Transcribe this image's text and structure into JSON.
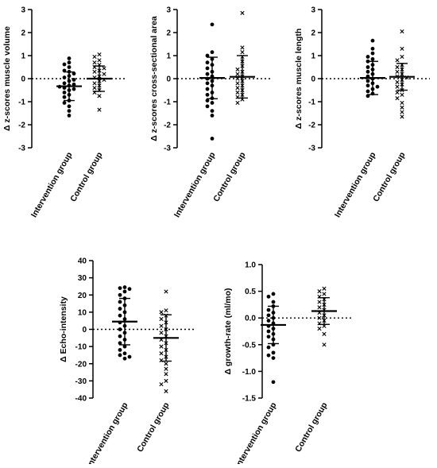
{
  "chart_data": [
    {
      "type": "scatter",
      "ylabel": "Δ z-scores muscle volume",
      "ylim": [
        -3,
        3
      ],
      "yticks": [
        "-3",
        "-2",
        "-1",
        "0",
        "1",
        "2",
        "3"
      ],
      "categories": [
        "Intervention group",
        "Control group"
      ],
      "reference_line_y": 0,
      "series": [
        {
          "marker": "dot",
          "mean": -0.33,
          "sd": 0.62,
          "values": [
            0.88,
            0.7,
            0.62,
            0.5,
            0.35,
            0.3,
            0.22,
            0.12,
            0.05,
            -0.05,
            -0.1,
            -0.2,
            -0.25,
            -0.3,
            -0.35,
            -0.4,
            -0.45,
            -0.5,
            -0.6,
            -0.7,
            -0.8,
            -0.95,
            -1.05,
            -1.2,
            -1.4,
            -1.6
          ]
        },
        {
          "marker": "cross",
          "mean": 0.0,
          "sd": 0.55,
          "values": [
            1.05,
            0.95,
            0.8,
            0.7,
            0.6,
            0.5,
            0.45,
            0.35,
            0.3,
            0.2,
            0.1,
            0.05,
            -0.05,
            -0.1,
            -0.2,
            -0.3,
            -0.4,
            -0.5,
            -0.6,
            -0.75,
            -1.35
          ]
        }
      ]
    },
    {
      "type": "scatter",
      "ylabel": "Δ z-scores cross-sectional area",
      "ylim": [
        -3,
        3
      ],
      "yticks": [
        "-3",
        "-2",
        "-1",
        "0",
        "1",
        "2",
        "3"
      ],
      "categories": [
        "Intervention group",
        "Control group"
      ],
      "reference_line_y": 0,
      "series": [
        {
          "marker": "dot",
          "mean": 0.03,
          "sd": 0.9,
          "values": [
            2.35,
            1.15,
            1.0,
            0.85,
            0.7,
            0.6,
            0.45,
            0.3,
            0.2,
            0.1,
            0.0,
            -0.1,
            -0.2,
            -0.3,
            -0.45,
            -0.6,
            -0.7,
            -0.85,
            -0.95,
            -1.05,
            -1.2,
            -1.4,
            -1.6,
            -2.6
          ]
        },
        {
          "marker": "cross",
          "mean": 0.08,
          "sd": 0.92,
          "values": [
            2.85,
            1.35,
            1.15,
            0.95,
            0.75,
            0.55,
            0.4,
            0.3,
            0.2,
            0.1,
            0.0,
            -0.1,
            -0.2,
            -0.3,
            -0.4,
            -0.5,
            -0.6,
            -0.7,
            -0.8,
            -0.9,
            -1.05
          ]
        }
      ]
    },
    {
      "type": "scatter",
      "ylabel": "Δ z-scores muscle length",
      "ylim": [
        -3,
        3
      ],
      "yticks": [
        "-3",
        "-2",
        "-1",
        "0",
        "1",
        "2",
        "3"
      ],
      "categories": [
        "Intervention group",
        "Control group"
      ],
      "reference_line_y": 0,
      "series": [
        {
          "marker": "dot",
          "mean": 0.03,
          "sd": 0.72,
          "values": [
            1.65,
            1.3,
            1.1,
            0.95,
            0.85,
            0.75,
            0.6,
            0.5,
            0.4,
            0.3,
            0.2,
            0.1,
            0.0,
            -0.1,
            -0.2,
            -0.3,
            -0.35,
            -0.45,
            -0.55,
            -0.65,
            -0.75
          ]
        },
        {
          "marker": "cross",
          "mean": 0.08,
          "sd": 0.58,
          "values": [
            2.05,
            1.3,
            0.95,
            0.8,
            0.6,
            0.5,
            0.4,
            0.3,
            0.2,
            0.1,
            0.05,
            -0.05,
            -0.15,
            -0.25,
            -0.35,
            -0.5,
            -0.6,
            -0.7,
            -0.85,
            -1.05,
            -1.25,
            -1.45,
            -1.65
          ]
        }
      ]
    },
    {
      "type": "scatter",
      "ylabel": "Δ Echo-intensity",
      "ylim": [
        -40,
        40
      ],
      "yticks": [
        "-40",
        "-30",
        "-20",
        "-10",
        "0",
        "10",
        "20",
        "30",
        "40"
      ],
      "categories": [
        "Intervention group",
        "Control group"
      ],
      "reference_line_y": 0,
      "series": [
        {
          "marker": "dot",
          "mean": 4.5,
          "sd": 13.5,
          "values": [
            24.5,
            24,
            23.5,
            22,
            20,
            18,
            16,
            14,
            12,
            10,
            8,
            6,
            4,
            2,
            0,
            -2,
            -4,
            -6,
            -8,
            -10,
            -12,
            -14,
            -15,
            -16,
            -17
          ]
        },
        {
          "marker": "cross",
          "mean": -5.0,
          "sd": 13.5,
          "values": [
            22,
            11,
            10,
            8,
            6,
            4,
            2,
            0,
            -2,
            -4,
            -6,
            -8,
            -10,
            -12,
            -14,
            -16,
            -18,
            -20,
            -23,
            -26,
            -30,
            -32,
            -36
          ]
        }
      ]
    },
    {
      "type": "scatter",
      "ylabel": "Δ growth-rate (ml/mo)",
      "ylim": [
        -1.5,
        1.0
      ],
      "yticks": [
        "-1.5",
        "-1.0",
        "-0.5",
        "0.0",
        "0.5",
        "1.0"
      ],
      "categories": [
        "Intervention group",
        "Control group"
      ],
      "reference_line_y": 0,
      "series": [
        {
          "marker": "dot",
          "mean": -0.13,
          "sd": 0.35,
          "values": [
            0.45,
            0.4,
            0.3,
            0.22,
            0.15,
            0.1,
            0.05,
            0.0,
            -0.05,
            -0.1,
            -0.15,
            -0.2,
            -0.25,
            -0.3,
            -0.35,
            -0.4,
            -0.5,
            -0.55,
            -0.65,
            -0.7,
            -0.75,
            -1.2
          ]
        },
        {
          "marker": "cross",
          "mean": 0.13,
          "sd": 0.25,
          "values": [
            0.55,
            0.5,
            0.45,
            0.4,
            0.35,
            0.3,
            0.25,
            0.2,
            0.15,
            0.1,
            0.05,
            0.0,
            -0.05,
            -0.1,
            -0.15,
            -0.2,
            -0.3,
            -0.5
          ]
        }
      ]
    }
  ]
}
